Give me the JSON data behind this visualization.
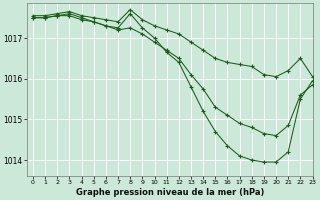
{
  "background_color": "#cce8d8",
  "grid_color": "#ffffff",
  "line_color": "#1a5c1a",
  "title": "Graphe pression niveau de la mer (hPa)",
  "xlim": [
    -0.5,
    23
  ],
  "ylim": [
    1013.6,
    1017.85
  ],
  "yticks": [
    1014,
    1015,
    1016,
    1017
  ],
  "xticks": [
    0,
    1,
    2,
    3,
    4,
    5,
    6,
    7,
    8,
    9,
    10,
    11,
    12,
    13,
    14,
    15,
    16,
    17,
    18,
    19,
    20,
    21,
    22,
    23
  ],
  "series": [
    {
      "x": [
        0,
        1,
        2,
        3,
        4,
        5,
        6,
        7,
        8,
        9,
        10,
        11,
        12,
        13,
        14,
        15,
        16,
        17,
        18,
        19,
        20,
        21,
        22,
        23
      ],
      "y": [
        1017.55,
        1017.55,
        1017.6,
        1017.65,
        1017.55,
        1017.5,
        1017.45,
        1017.4,
        1017.7,
        1017.45,
        1017.3,
        1017.2,
        1017.1,
        1016.9,
        1016.7,
        1016.5,
        1016.4,
        1016.35,
        1016.3,
        1016.1,
        1016.05,
        1016.2,
        1016.5,
        1016.05
      ]
    },
    {
      "x": [
        0,
        1,
        2,
        3,
        4,
        5,
        6,
        7,
        8,
        9,
        10,
        11,
        12,
        13,
        14,
        15,
        16,
        17,
        18,
        19,
        20,
        21,
        22,
        23
      ],
      "y": [
        1017.5,
        1017.5,
        1017.55,
        1017.55,
        1017.45,
        1017.4,
        1017.3,
        1017.2,
        1017.25,
        1017.1,
        1016.9,
        1016.7,
        1016.5,
        1016.1,
        1015.75,
        1015.3,
        1015.1,
        1014.9,
        1014.8,
        1014.65,
        1014.6,
        1014.85,
        1015.6,
        1015.85
      ]
    },
    {
      "x": [
        0,
        1,
        2,
        3,
        4,
        5,
        6,
        7,
        8,
        9,
        10,
        11,
        12,
        13,
        14,
        15,
        16,
        17,
        18,
        19,
        20,
        21,
        22,
        23
      ],
      "y": [
        1017.5,
        1017.5,
        1017.55,
        1017.6,
        1017.5,
        1017.4,
        1017.3,
        1017.25,
        1017.6,
        1017.25,
        1017.0,
        1016.65,
        1016.4,
        1015.8,
        1015.2,
        1014.7,
        1014.35,
        1014.1,
        1014.0,
        1013.95,
        1013.95,
        1014.2,
        1015.5,
        1015.95
      ]
    }
  ]
}
